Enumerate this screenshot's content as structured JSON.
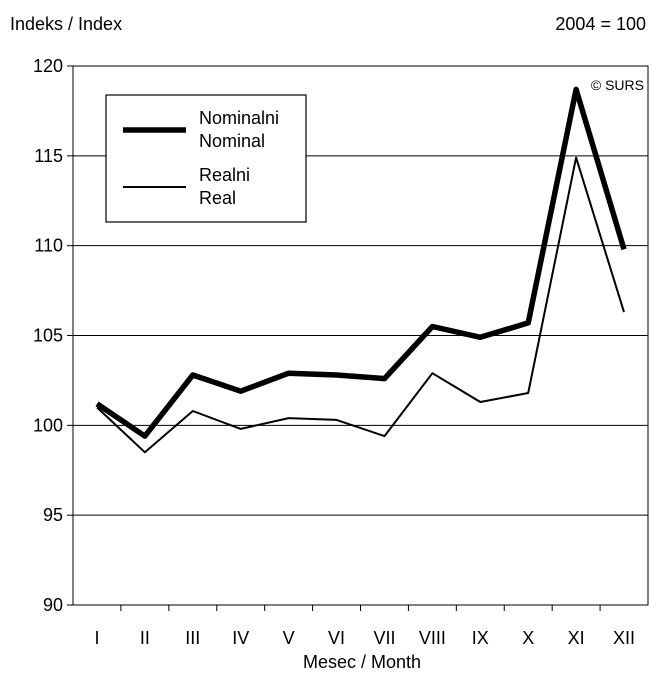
{
  "chart_data": {
    "type": "line",
    "ylabel": "Indeks / Index",
    "base_note": "2004 = 100",
    "copyright": "© SURS",
    "xlabel": "Mesec / Month",
    "categories": [
      "I",
      "II",
      "III",
      "IV",
      "V",
      "VI",
      "VII",
      "VIII",
      "IX",
      "X",
      "XI",
      "XII"
    ],
    "ylim": [
      90,
      120
    ],
    "yticks": [
      90,
      95,
      100,
      105,
      110,
      115,
      120
    ],
    "grid": true,
    "legend_position": "top-left",
    "series": [
      {
        "name_line1": "Nominalni",
        "name_line2": "Nominal",
        "style": "thick",
        "values": [
          101.2,
          99.4,
          102.8,
          101.9,
          102.9,
          102.8,
          102.6,
          105.5,
          104.9,
          105.7,
          118.7,
          109.8
        ]
      },
      {
        "name_line1": "Realni",
        "name_line2": "Real",
        "style": "thin",
        "values": [
          101.0,
          98.5,
          100.8,
          99.8,
          100.4,
          100.3,
          99.4,
          102.9,
          101.3,
          101.8,
          114.9,
          106.3
        ]
      }
    ],
    "colors": {
      "line": "#000000",
      "grid": "#000000",
      "background": "#ffffff"
    }
  }
}
